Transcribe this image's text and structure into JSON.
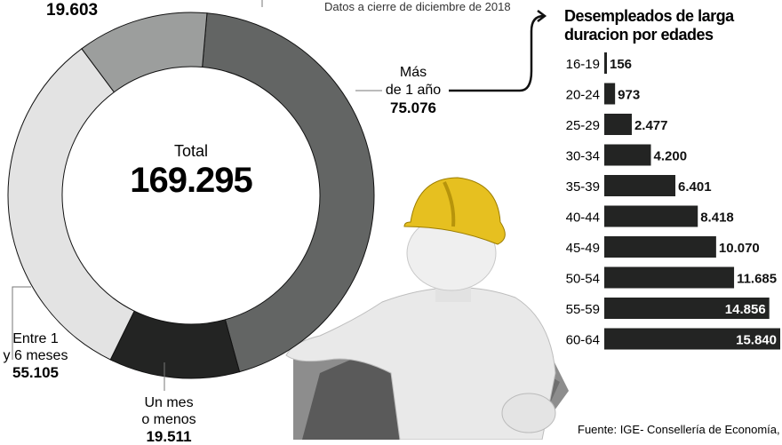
{
  "header": {
    "note": "Datos a cierre de diciembre de 2018"
  },
  "chart_data": [
    {
      "type": "pie",
      "donut": true,
      "center_label": "Total",
      "center_value": "169.295",
      "slices": [
        {
          "label": "Más de 1 año",
          "label_lines": [
            "Más",
            "de 1 año"
          ],
          "value": 75076,
          "value_text": "75.076",
          "color": "#636564"
        },
        {
          "label": "Un mes o menos",
          "label_lines": [
            "Un mes",
            "o menos"
          ],
          "value": 19511,
          "value_text": "19.511",
          "color": "#232423"
        },
        {
          "label": "Entre 1 y 6 meses",
          "label_lines": [
            "Entre 1",
            "y 6 meses"
          ],
          "value": 55105,
          "value_text": "55.105",
          "color": "#e3e3e3"
        },
        {
          "label": "",
          "label_lines": [],
          "value": 19603,
          "value_text": "19.603",
          "color": "#9c9e9d"
        }
      ]
    },
    {
      "type": "bar",
      "orientation": "horizontal",
      "title": "Desempleados de larga duracion por edades",
      "title_lines": [
        "Desempleados de larga",
        "duracion por edades"
      ],
      "categories": [
        "16-19",
        "20-24",
        "25-29",
        "30-34",
        "35-39",
        "40-44",
        "45-49",
        "50-54",
        "55-59",
        "60-64"
      ],
      "values": [
        156,
        973,
        2477,
        4200,
        6401,
        8418,
        10070,
        11685,
        14856,
        15840
      ],
      "value_labels": [
        "156",
        "973",
        "2.477",
        "4.200",
        "6.401",
        "8.418",
        "10.070",
        "11.685",
        "14.856",
        "15.840"
      ],
      "color": "#232423"
    }
  ],
  "source": "Fuente: IGE- Consellería de Economía,"
}
